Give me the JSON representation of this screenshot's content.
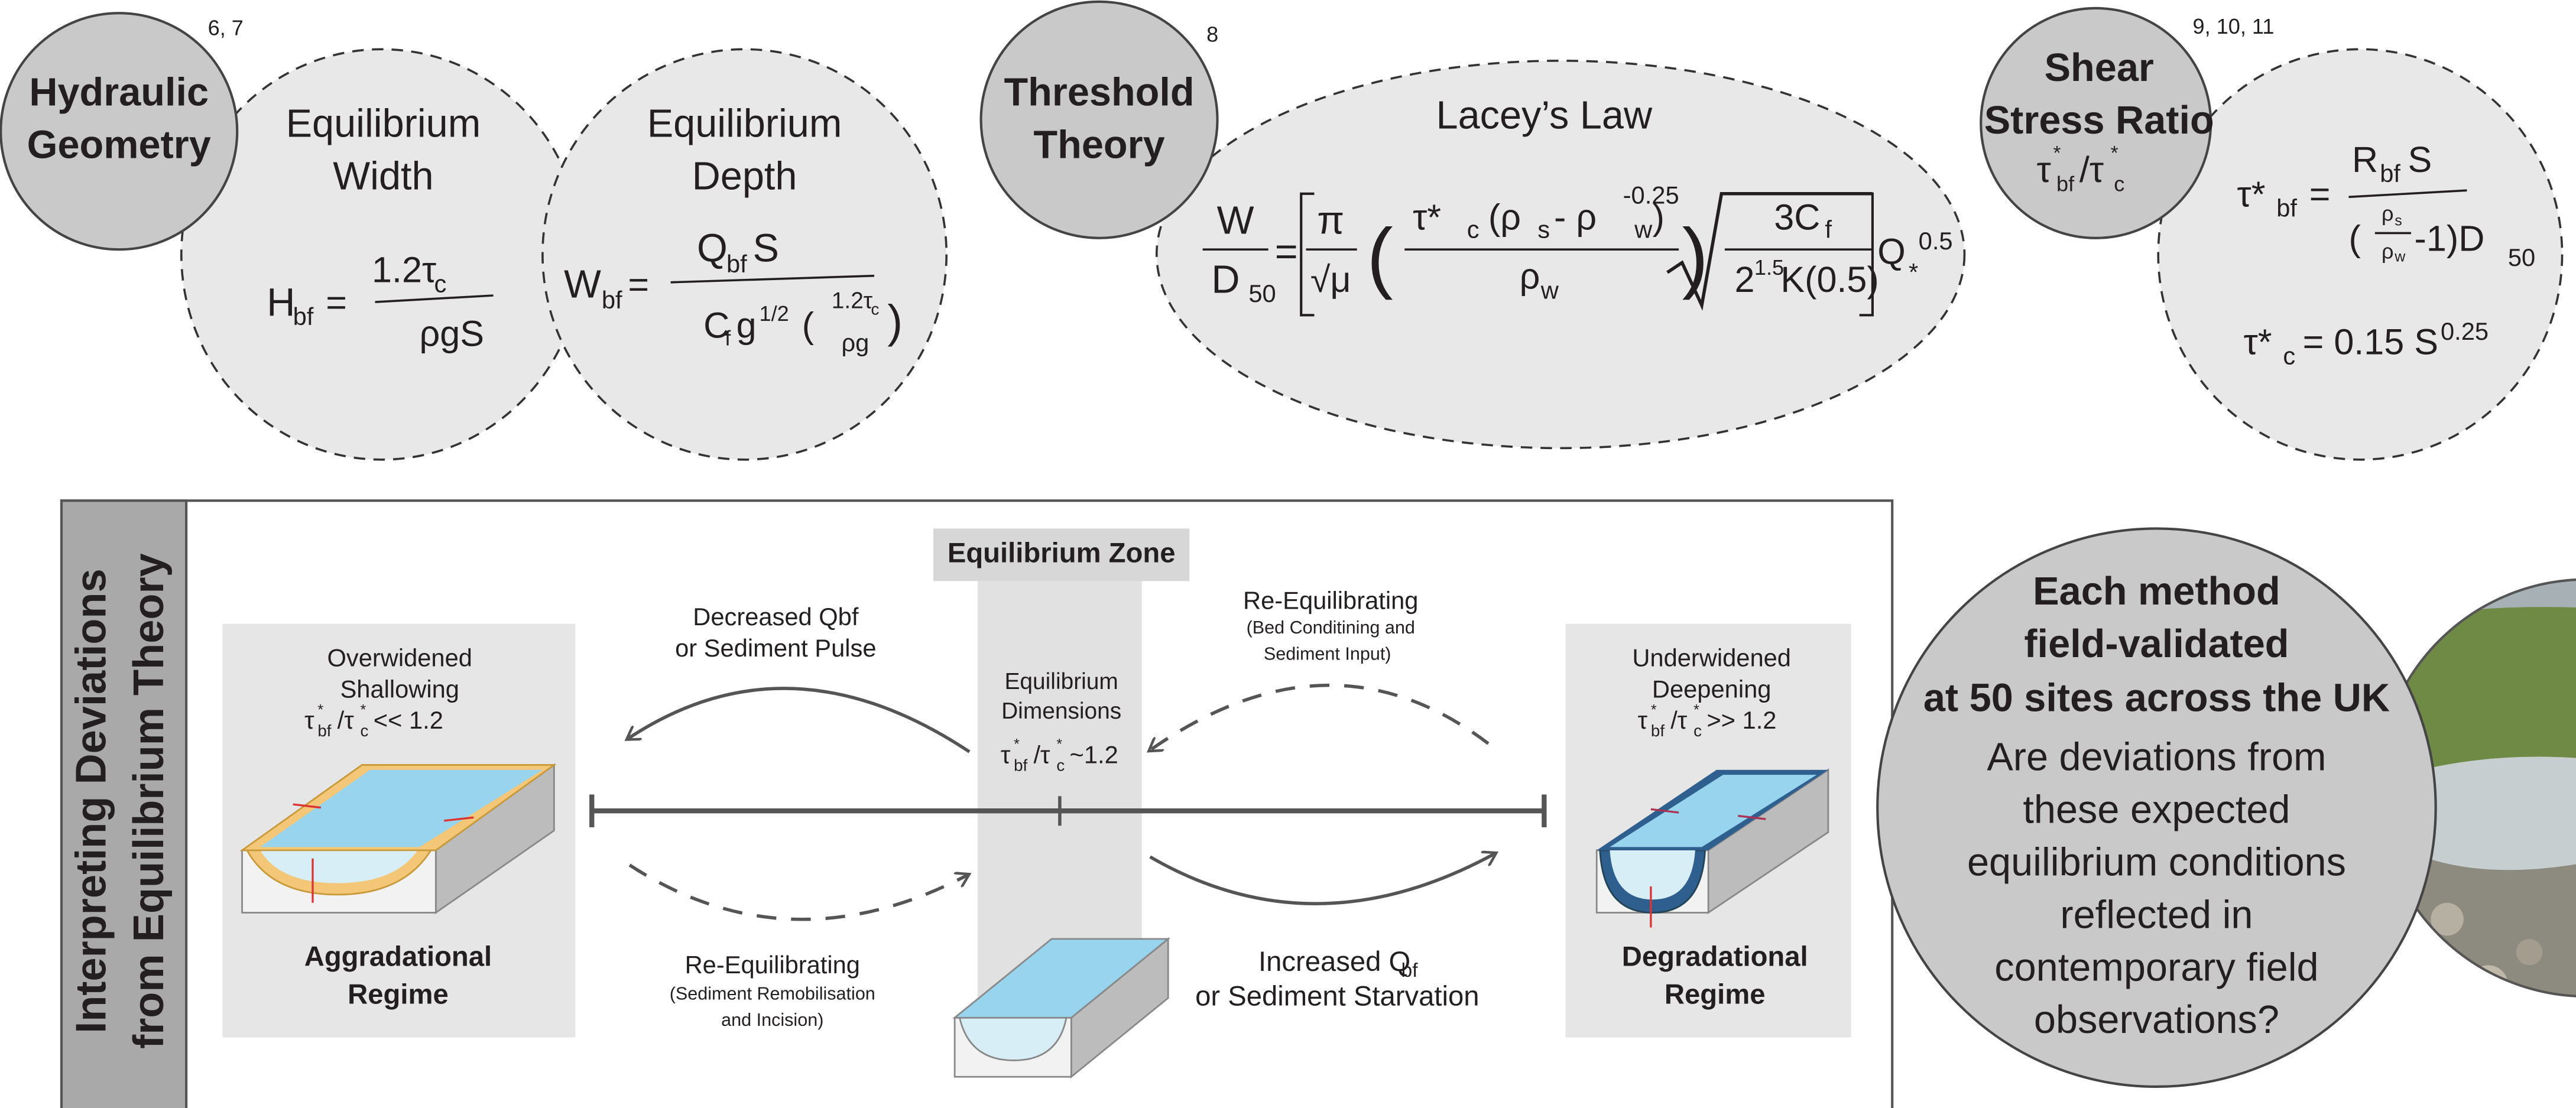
{
  "hydraulic_geometry": {
    "title": [
      "Hydraulic",
      "Geometry"
    ],
    "refs": "6, 7",
    "width": {
      "title": [
        "Equilibrium",
        "Width"
      ],
      "formula": [
        "H",
        "bf",
        "=",
        "1.2τ",
        "c",
        "ρgS"
      ]
    },
    "depth": {
      "title": [
        "Equilibrium",
        "Depth"
      ],
      "formula": [
        "W",
        "bf",
        "=",
        "Q",
        "bf",
        "S",
        "C",
        "f",
        "g",
        "1/2",
        "(",
        "1.2τ",
        "c",
        "ρg",
        ")"
      ]
    }
  },
  "threshold_theory": {
    "title": [
      "Threshold",
      "Theory"
    ],
    "refs": "8",
    "lacey": {
      "title": "Lacey’s Law",
      "formula": [
        "W",
        "D",
        "50",
        "=",
        "π",
        "√μ",
        "(",
        "τ*",
        "c",
        "(ρ",
        "s",
        " - ρ",
        "w",
        ")",
        "ρ",
        "w",
        ")",
        "-0.25",
        "3C",
        "f",
        "2",
        "1.5",
        "K(0.5)",
        "Q",
        "*",
        "0.5"
      ]
    }
  },
  "shear_stress_ratio": {
    "title": [
      "Shear",
      "Stress Ratio"
    ],
    "ratio": [
      "τ",
      "*",
      "bf",
      "/τ",
      "*",
      "c"
    ],
    "refs": "9, 10, 11",
    "formula_1": [
      "τ*",
      "bf",
      "=",
      "R",
      "bf",
      "S",
      "(",
      "ρ",
      "s",
      "ρ",
      "w",
      "-1)D",
      "50"
    ],
    "formula_2": [
      "τ*",
      "c",
      "= 0.15 S",
      "0.25"
    ]
  },
  "deviations": {
    "title": [
      "Interpreting Deviations",
      "from Equilibrium Theory"
    ],
    "aggradational": {
      "state": [
        "Overwidened",
        "Shallowing"
      ],
      "ratio": [
        "τ",
        "*",
        "bf",
        "/τ",
        "*",
        "c",
        " << 1.2"
      ],
      "regime": [
        "Aggradational",
        "Regime"
      ]
    },
    "equilibrium": {
      "zone": "Equilibrium Zone",
      "label": [
        "Equilibrium",
        "Dimensions"
      ],
      "ratio": [
        "τ",
        "*",
        "bf",
        "/τ",
        "*",
        "c",
        " ~1.2"
      ]
    },
    "degradational": {
      "state": [
        "Underwidened",
        "Deepening"
      ],
      "ratio": [
        "τ",
        "*",
        "bf",
        "/τ",
        "*",
        "c",
        " >> 1.2"
      ],
      "regime": [
        "Degradational",
        "Regime"
      ]
    },
    "decreased": [
      "Decreased Qbf",
      "or Sediment Pulse"
    ],
    "re_equilibrating_top": [
      "Re-Equilibrating",
      "(Bed Conditining and",
      "Sediment Input)"
    ],
    "re_equilibrating_bottom": [
      "Re-Equilibrating",
      "(Sediment Remobilisation",
      "and Incision)"
    ],
    "increased": [
      "Increased Q",
      "bf",
      "or Sediment Starvation"
    ]
  },
  "validation": {
    "headline": [
      "Each method",
      "field-validated",
      "at 50 sites across the UK"
    ],
    "question": [
      "Are deviations from",
      "these expected",
      "equilibrium conditions",
      "reflected in",
      "contemporary field",
      "observations?"
    ]
  }
}
